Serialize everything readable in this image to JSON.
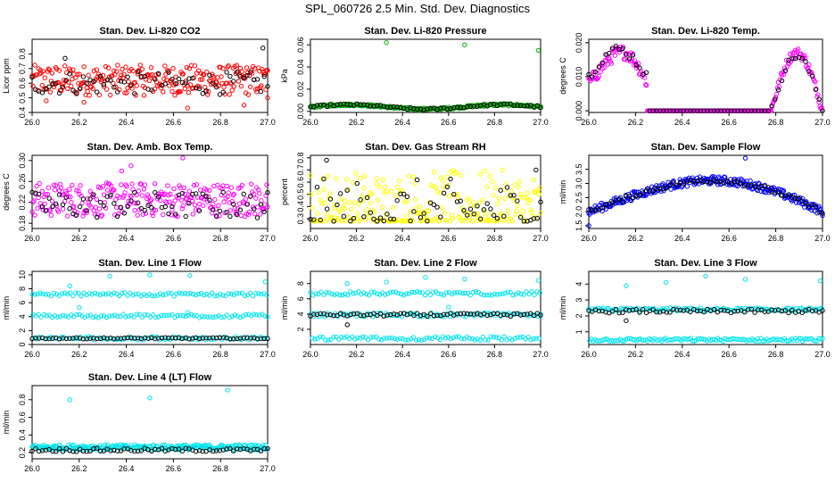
{
  "title": "SPL_060726  2.5 Min. Std. Dev. Diagnostics",
  "chart_data": [
    {
      "type": "scatter",
      "title": "Stan. Dev. Li-820 CO2",
      "ylabel": "Licor ppm",
      "xlim": [
        26.0,
        27.0
      ],
      "ylim": [
        0.4,
        0.9
      ],
      "yticks": [
        0.4,
        0.5,
        0.6,
        0.7,
        0.8
      ],
      "xticks": [
        "26.0",
        "26.2",
        "26.4",
        "26.6",
        "26.8",
        "27.0"
      ],
      "series": [
        {
          "name": "all",
          "color": "#ff0000",
          "pattern": "band",
          "base": 0.62,
          "spread": 0.08,
          "outliers": [
            [
              26.66,
              0.43
            ],
            [
              26.06,
              0.48
            ],
            [
              26.22,
              0.47
            ],
            [
              26.9,
              0.45
            ],
            [
              27.0,
              0.5
            ]
          ]
        },
        {
          "name": "selected",
          "color": "#000000",
          "pattern": "band",
          "base": 0.6,
          "spread": 0.06,
          "outliers": [
            [
              26.98,
              0.84
            ],
            [
              26.14,
              0.77
            ]
          ]
        }
      ]
    },
    {
      "type": "scatter",
      "title": "Stan. Dev. Li-820 Pressure",
      "ylabel": "kPa",
      "xlim": [
        26.0,
        27.0
      ],
      "ylim": [
        -0.001,
        0.065
      ],
      "yticks": [
        0.0,
        0.02,
        0.04,
        0.06
      ],
      "ytickstr": [
        "0.00",
        "0.02",
        "0.04",
        "0.06"
      ],
      "xticks": [
        "26.0",
        "26.2",
        "26.4",
        "26.6",
        "26.8",
        "27.0"
      ],
      "series": [
        {
          "name": "all",
          "color": "#00aa00",
          "pattern": "waveLow",
          "base": 0.004,
          "spread": 0.002,
          "outliers": [
            [
              26.33,
              0.062
            ],
            [
              26.67,
              0.06
            ],
            [
              26.99,
              0.055
            ]
          ]
        },
        {
          "name": "selected",
          "color": "#000000",
          "pattern": "waveLow",
          "base": 0.004,
          "spread": 0.002,
          "outliers": []
        }
      ]
    },
    {
      "type": "scatter",
      "title": "Stan. Dev. Li-820 Temp.",
      "ylabel": "degrees C",
      "xlim": [
        26.0,
        27.0
      ],
      "ylim": [
        -0.0005,
        0.021
      ],
      "yticks": [
        0.0,
        0.01,
        0.02
      ],
      "ytickstr": [
        "0.000",
        "0.010",
        "0.020"
      ],
      "xticks": [
        "26.0",
        "26.2",
        "26.4",
        "26.6",
        "26.8",
        "27.0"
      ],
      "series": [
        {
          "name": "all",
          "color": "#ff00ff",
          "pattern": "humps",
          "base": 0.0,
          "spread": 0.0,
          "outliers": []
        },
        {
          "name": "selected",
          "color": "#000000",
          "pattern": "humpsSparse",
          "base": 0.0,
          "spread": 0.0,
          "outliers": []
        }
      ]
    },
    {
      "type": "scatter",
      "title": "Stan. Dev. Amb. Box Temp.",
      "ylabel": "degrees C",
      "xlim": [
        26.0,
        27.0
      ],
      "ylim": [
        0.17,
        0.31
      ],
      "yticks": [
        0.18,
        0.22,
        0.26,
        0.3
      ],
      "ytickstr": [
        "0.18",
        "0.22",
        "0.26",
        "0.30"
      ],
      "xticks": [
        "26.0",
        "26.2",
        "26.4",
        "26.6",
        "26.8",
        "27.0"
      ],
      "series": [
        {
          "name": "all",
          "color": "#ff00ff",
          "pattern": "band",
          "base": 0.225,
          "spread": 0.025,
          "outliers": [
            [
              26.64,
              0.305
            ],
            [
              26.42,
              0.29
            ],
            [
              26.38,
              0.28
            ]
          ]
        },
        {
          "name": "selected",
          "color": "#000000",
          "pattern": "band",
          "base": 0.215,
          "spread": 0.02,
          "outliers": []
        }
      ]
    },
    {
      "type": "scatter",
      "title": "Stan. Dev. Gas Stream RH",
      "ylabel": "percent",
      "xlim": [
        26.0,
        27.0
      ],
      "ylim": [
        0.22,
        0.82
      ],
      "yticks": [
        0.3,
        0.4,
        0.5,
        0.6,
        0.7,
        0.8
      ],
      "ytickstr": [
        "0.3",
        "0.4",
        "0.5",
        "0.6",
        "0.7",
        "0.8"
      ],
      "xticks": [
        "26.0",
        "26.2",
        "26.4",
        "26.6",
        "26.8",
        "27.0"
      ],
      "series": [
        {
          "name": "all",
          "color": "#ffff00",
          "pattern": "skewLow",
          "base": 0.3,
          "spread": 0.3,
          "outliers": []
        },
        {
          "name": "selected",
          "color": "#000000",
          "pattern": "skewLow",
          "base": 0.3,
          "spread": 0.25,
          "outliers": [
            [
              26.07,
              0.78
            ],
            [
              26.98,
              0.7
            ]
          ]
        }
      ]
    },
    {
      "type": "scatter",
      "title": "Stan. Dev. Sample Flow",
      "ylabel": "ml/min",
      "xlim": [
        26.0,
        27.0
      ],
      "ylim": [
        1.4,
        4.0
      ],
      "yticks": [
        1.5,
        2.0,
        2.5,
        3.0,
        3.5
      ],
      "ytickstr": [
        "1.5",
        "2.0",
        "2.5",
        "3.0",
        "3.5"
      ],
      "xticks": [
        "26.0",
        "26.2",
        "26.4",
        "26.6",
        "26.8",
        "27.0"
      ],
      "series": [
        {
          "name": "all",
          "color": "#0000ff",
          "pattern": "arch",
          "base": 2.0,
          "spread": 0.15,
          "outliers": [
            [
              26.67,
              3.9
            ],
            [
              26.0,
              1.5
            ]
          ]
        },
        {
          "name": "selected",
          "color": "#000000",
          "pattern": "arch",
          "base": 2.0,
          "spread": 0.08,
          "outliers": []
        }
      ]
    },
    {
      "type": "scatter",
      "title": "Stan. Dev. Line 1 Flow",
      "ylabel": "ml/min",
      "xlim": [
        26.0,
        27.0
      ],
      "ylim": [
        0,
        10.5
      ],
      "yticks": [
        0,
        2,
        4,
        6,
        8,
        10
      ],
      "ytickstr": [
        "0",
        "2",
        "4",
        "6",
        "8",
        "10"
      ],
      "xticks": [
        "26.0",
        "26.2",
        "26.4",
        "26.6",
        "26.8",
        "27.0"
      ],
      "series": [
        {
          "name": "all",
          "color": "#00e5ee",
          "pattern": "levels",
          "levels": [
            7.2,
            4.1,
            0.9
          ],
          "spread": 0.25,
          "outliers": [
            [
              26.16,
              8.4
            ],
            [
              26.33,
              9.8
            ],
            [
              26.5,
              10.0
            ],
            [
              26.67,
              9.9
            ],
            [
              26.99,
              9.0
            ],
            [
              26.2,
              5.3
            ],
            [
              26.66,
              4.6
            ]
          ]
        },
        {
          "name": "selected",
          "color": "#000000",
          "pattern": "levels",
          "levels": [
            0.9
          ],
          "spread": 0.1,
          "outliers": []
        }
      ]
    },
    {
      "type": "scatter",
      "title": "Stan. Dev. Line 2 Flow",
      "ylabel": "ml/min",
      "xlim": [
        26.0,
        27.0
      ],
      "ylim": [
        0,
        9.6
      ],
      "yticks": [
        2,
        4,
        6,
        8
      ],
      "ytickstr": [
        "2",
        "4",
        "6",
        "8"
      ],
      "xticks": [
        "26.0",
        "26.2",
        "26.4",
        "26.6",
        "26.8",
        "27.0"
      ],
      "series": [
        {
          "name": "all",
          "color": "#00e5ee",
          "pattern": "levels",
          "levels": [
            6.7,
            3.9,
            0.8
          ],
          "spread": 0.25,
          "outliers": [
            [
              26.16,
              8.0
            ],
            [
              26.33,
              8.2
            ],
            [
              26.5,
              8.8
            ],
            [
              26.67,
              8.6
            ],
            [
              26.99,
              8.4
            ],
            [
              26.6,
              4.9
            ]
          ]
        },
        {
          "name": "selected",
          "color": "#000000",
          "pattern": "levels",
          "levels": [
            3.9
          ],
          "spread": 0.2,
          "outliers": [
            [
              26.16,
              2.6
            ]
          ]
        }
      ]
    },
    {
      "type": "scatter",
      "title": "Stan. Dev. Line 3 Flow",
      "ylabel": "ml/min",
      "xlim": [
        26.0,
        27.0
      ],
      "ylim": [
        0.2,
        4.8
      ],
      "yticks": [
        1,
        2,
        3,
        4
      ],
      "ytickstr": [
        "1",
        "2",
        "3",
        "4"
      ],
      "xticks": [
        "26.0",
        "26.2",
        "26.4",
        "26.6",
        "26.8",
        "27.0"
      ],
      "series": [
        {
          "name": "all",
          "color": "#00e5ee",
          "pattern": "levels",
          "levels": [
            2.4,
            0.5
          ],
          "spread": 0.1,
          "outliers": [
            [
              26.16,
              3.9
            ],
            [
              26.33,
              4.1
            ],
            [
              26.5,
              4.5
            ],
            [
              26.67,
              4.3
            ],
            [
              26.99,
              4.2
            ]
          ]
        },
        {
          "name": "selected",
          "color": "#000000",
          "pattern": "levels",
          "levels": [
            2.3
          ],
          "spread": 0.12,
          "outliers": [
            [
              26.16,
              1.7
            ]
          ]
        }
      ]
    },
    {
      "type": "scatter",
      "title": "Stan. Dev. Line 4 (LT) Flow",
      "ylabel": "ml/min",
      "xlim": [
        26.0,
        27.0
      ],
      "ylim": [
        0.13,
        0.96
      ],
      "yticks": [
        0.2,
        0.4,
        0.6,
        0.8
      ],
      "ytickstr": [
        "0.2",
        "0.4",
        "0.6",
        "0.8"
      ],
      "xticks": [
        "26.0",
        "26.2",
        "26.4",
        "26.6",
        "26.8",
        "27.0"
      ],
      "series": [
        {
          "name": "all",
          "color": "#00e5ee",
          "pattern": "levels",
          "levels": [
            0.26
          ],
          "spread": 0.03,
          "outliers": [
            [
              26.16,
              0.8
            ],
            [
              26.5,
              0.82
            ],
            [
              26.83,
              0.91
            ]
          ]
        },
        {
          "name": "selected",
          "color": "#000000",
          "pattern": "levels",
          "levels": [
            0.23
          ],
          "spread": 0.02,
          "outliers": []
        }
      ]
    }
  ]
}
